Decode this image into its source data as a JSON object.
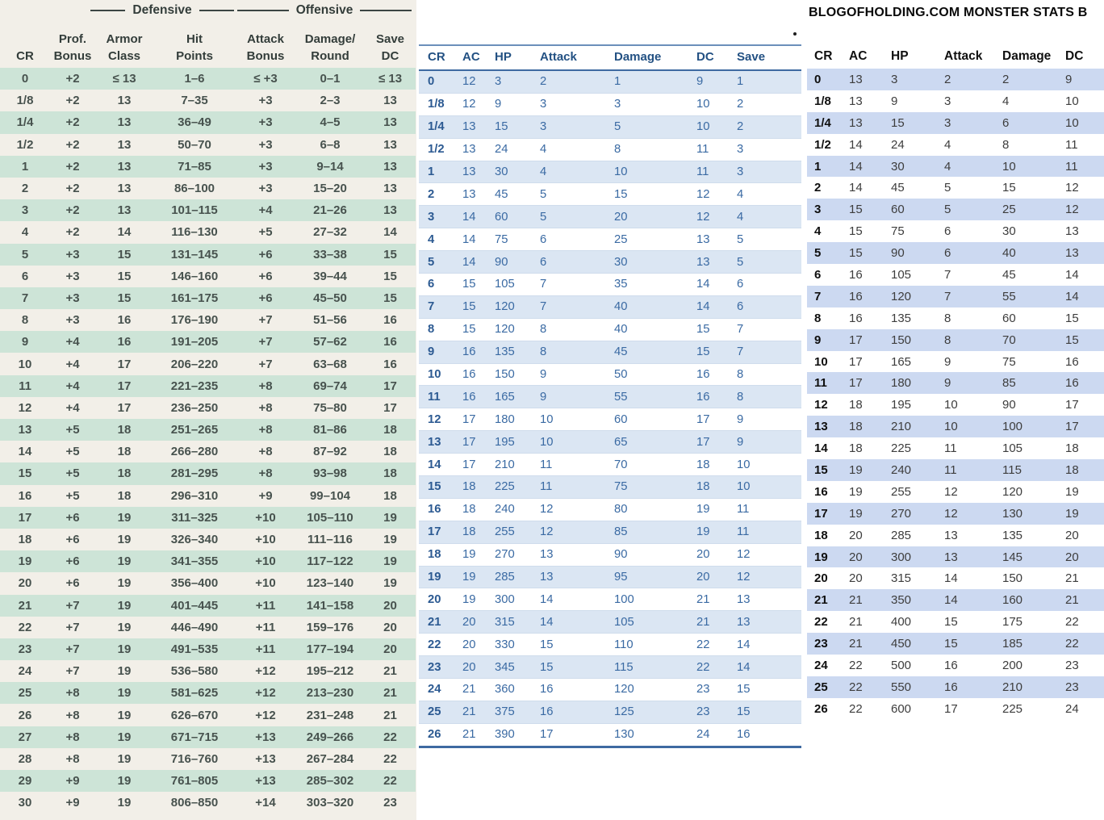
{
  "colors": {
    "dmg_paper": "#f2efe8",
    "dmg_stripe": "#cde4d7",
    "blue_stripe": "#dbe6f3",
    "blue_text": "#3a6aa3",
    "bh_stripe": "#ccd9f1"
  },
  "stray_dot": ".",
  "dmg_table": {
    "group_headers": {
      "defensive": "Defensive",
      "offensive": "Offensive"
    },
    "columns": [
      "CR",
      "Prof.\nBonus",
      "Armor\nClass",
      "Hit\nPoints",
      "Attack\nBonus",
      "Damage/\nRound",
      "Save\nDC"
    ],
    "rows": [
      [
        "0",
        "+2",
        "≤ 13",
        "1–6",
        "≤ +3",
        "0–1",
        "≤ 13"
      ],
      [
        "1/8",
        "+2",
        "13",
        "7–35",
        "+3",
        "2–3",
        "13"
      ],
      [
        "1/4",
        "+2",
        "13",
        "36–49",
        "+3",
        "4–5",
        "13"
      ],
      [
        "1/2",
        "+2",
        "13",
        "50–70",
        "+3",
        "6–8",
        "13"
      ],
      [
        "1",
        "+2",
        "13",
        "71–85",
        "+3",
        "9–14",
        "13"
      ],
      [
        "2",
        "+2",
        "13",
        "86–100",
        "+3",
        "15–20",
        "13"
      ],
      [
        "3",
        "+2",
        "13",
        "101–115",
        "+4",
        "21–26",
        "13"
      ],
      [
        "4",
        "+2",
        "14",
        "116–130",
        "+5",
        "27–32",
        "14"
      ],
      [
        "5",
        "+3",
        "15",
        "131–145",
        "+6",
        "33–38",
        "15"
      ],
      [
        "6",
        "+3",
        "15",
        "146–160",
        "+6",
        "39–44",
        "15"
      ],
      [
        "7",
        "+3",
        "15",
        "161–175",
        "+6",
        "45–50",
        "15"
      ],
      [
        "8",
        "+3",
        "16",
        "176–190",
        "+7",
        "51–56",
        "16"
      ],
      [
        "9",
        "+4",
        "16",
        "191–205",
        "+7",
        "57–62",
        "16"
      ],
      [
        "10",
        "+4",
        "17",
        "206–220",
        "+7",
        "63–68",
        "16"
      ],
      [
        "11",
        "+4",
        "17",
        "221–235",
        "+8",
        "69–74",
        "17"
      ],
      [
        "12",
        "+4",
        "17",
        "236–250",
        "+8",
        "75–80",
        "17"
      ],
      [
        "13",
        "+5",
        "18",
        "251–265",
        "+8",
        "81–86",
        "18"
      ],
      [
        "14",
        "+5",
        "18",
        "266–280",
        "+8",
        "87–92",
        "18"
      ],
      [
        "15",
        "+5",
        "18",
        "281–295",
        "+8",
        "93–98",
        "18"
      ],
      [
        "16",
        "+5",
        "18",
        "296–310",
        "+9",
        "99–104",
        "18"
      ],
      [
        "17",
        "+6",
        "19",
        "311–325",
        "+10",
        "105–110",
        "19"
      ],
      [
        "18",
        "+6",
        "19",
        "326–340",
        "+10",
        "111–116",
        "19"
      ],
      [
        "19",
        "+6",
        "19",
        "341–355",
        "+10",
        "117–122",
        "19"
      ],
      [
        "20",
        "+6",
        "19",
        "356–400",
        "+10",
        "123–140",
        "19"
      ],
      [
        "21",
        "+7",
        "19",
        "401–445",
        "+11",
        "141–158",
        "20"
      ],
      [
        "22",
        "+7",
        "19",
        "446–490",
        "+11",
        "159–176",
        "20"
      ],
      [
        "23",
        "+7",
        "19",
        "491–535",
        "+11",
        "177–194",
        "20"
      ],
      [
        "24",
        "+7",
        "19",
        "536–580",
        "+12",
        "195–212",
        "21"
      ],
      [
        "25",
        "+8",
        "19",
        "581–625",
        "+12",
        "213–230",
        "21"
      ],
      [
        "26",
        "+8",
        "19",
        "626–670",
        "+12",
        "231–248",
        "21"
      ],
      [
        "27",
        "+8",
        "19",
        "671–715",
        "+13",
        "249–266",
        "22"
      ],
      [
        "28",
        "+8",
        "19",
        "716–760",
        "+13",
        "267–284",
        "22"
      ],
      [
        "29",
        "+9",
        "19",
        "761–805",
        "+13",
        "285–302",
        "22"
      ],
      [
        "30",
        "+9",
        "19",
        "806–850",
        "+14",
        "303–320",
        "23"
      ]
    ]
  },
  "blue_table": {
    "columns": [
      "CR",
      "AC",
      "HP",
      "Attack",
      "Damage",
      "DC",
      "Save"
    ],
    "rows": [
      [
        "0",
        "12",
        "3",
        "2",
        "1",
        "9",
        "1"
      ],
      [
        "1/8",
        "12",
        "9",
        "3",
        "3",
        "10",
        "2"
      ],
      [
        "1/4",
        "13",
        "15",
        "3",
        "5",
        "10",
        "2"
      ],
      [
        "1/2",
        "13",
        "24",
        "4",
        "8",
        "11",
        "3"
      ],
      [
        "1",
        "13",
        "30",
        "4",
        "10",
        "11",
        "3"
      ],
      [
        "2",
        "13",
        "45",
        "5",
        "15",
        "12",
        "4"
      ],
      [
        "3",
        "14",
        "60",
        "5",
        "20",
        "12",
        "4"
      ],
      [
        "4",
        "14",
        "75",
        "6",
        "25",
        "13",
        "5"
      ],
      [
        "5",
        "14",
        "90",
        "6",
        "30",
        "13",
        "5"
      ],
      [
        "6",
        "15",
        "105",
        "7",
        "35",
        "14",
        "6"
      ],
      [
        "7",
        "15",
        "120",
        "7",
        "40",
        "14",
        "6"
      ],
      [
        "8",
        "15",
        "120",
        "8",
        "40",
        "15",
        "7"
      ],
      [
        "9",
        "16",
        "135",
        "8",
        "45",
        "15",
        "7"
      ],
      [
        "10",
        "16",
        "150",
        "9",
        "50",
        "16",
        "8"
      ],
      [
        "11",
        "16",
        "165",
        "9",
        "55",
        "16",
        "8"
      ],
      [
        "12",
        "17",
        "180",
        "10",
        "60",
        "17",
        "9"
      ],
      [
        "13",
        "17",
        "195",
        "10",
        "65",
        "17",
        "9"
      ],
      [
        "14",
        "17",
        "210",
        "11",
        "70",
        "18",
        "10"
      ],
      [
        "15",
        "18",
        "225",
        "11",
        "75",
        "18",
        "10"
      ],
      [
        "16",
        "18",
        "240",
        "12",
        "80",
        "19",
        "11"
      ],
      [
        "17",
        "18",
        "255",
        "12",
        "85",
        "19",
        "11"
      ],
      [
        "18",
        "19",
        "270",
        "13",
        "90",
        "20",
        "12"
      ],
      [
        "19",
        "19",
        "285",
        "13",
        "95",
        "20",
        "12"
      ],
      [
        "20",
        "19",
        "300",
        "14",
        "100",
        "21",
        "13"
      ],
      [
        "21",
        "20",
        "315",
        "14",
        "105",
        "21",
        "13"
      ],
      [
        "22",
        "20",
        "330",
        "15",
        "110",
        "22",
        "14"
      ],
      [
        "23",
        "20",
        "345",
        "15",
        "115",
        "22",
        "14"
      ],
      [
        "24",
        "21",
        "360",
        "16",
        "120",
        "23",
        "15"
      ],
      [
        "25",
        "21",
        "375",
        "16",
        "125",
        "23",
        "15"
      ],
      [
        "26",
        "21",
        "390",
        "17",
        "130",
        "24",
        "16"
      ]
    ]
  },
  "bh_table": {
    "title": "BLOGOFHOLDING.COM MONSTER STATS B",
    "columns": [
      "CR",
      "AC",
      "HP",
      "Attack",
      "Damage",
      "DC"
    ],
    "rows": [
      [
        "0",
        "13",
        "3",
        "2",
        "2",
        "9"
      ],
      [
        "1/8",
        "13",
        "9",
        "3",
        "4",
        "10"
      ],
      [
        "1/4",
        "13",
        "15",
        "3",
        "6",
        "10"
      ],
      [
        "1/2",
        "14",
        "24",
        "4",
        "8",
        "11"
      ],
      [
        "1",
        "14",
        "30",
        "4",
        "10",
        "11"
      ],
      [
        "2",
        "14",
        "45",
        "5",
        "15",
        "12"
      ],
      [
        "3",
        "15",
        "60",
        "5",
        "25",
        "12"
      ],
      [
        "4",
        "15",
        "75",
        "6",
        "30",
        "13"
      ],
      [
        "5",
        "15",
        "90",
        "6",
        "40",
        "13"
      ],
      [
        "6",
        "16",
        "105",
        "7",
        "45",
        "14"
      ],
      [
        "7",
        "16",
        "120",
        "7",
        "55",
        "14"
      ],
      [
        "8",
        "16",
        "135",
        "8",
        "60",
        "15"
      ],
      [
        "9",
        "17",
        "150",
        "8",
        "70",
        "15"
      ],
      [
        "10",
        "17",
        "165",
        "9",
        "75",
        "16"
      ],
      [
        "11",
        "17",
        "180",
        "9",
        "85",
        "16"
      ],
      [
        "12",
        "18",
        "195",
        "10",
        "90",
        "17"
      ],
      [
        "13",
        "18",
        "210",
        "10",
        "100",
        "17"
      ],
      [
        "14",
        "18",
        "225",
        "11",
        "105",
        "18"
      ],
      [
        "15",
        "19",
        "240",
        "11",
        "115",
        "18"
      ],
      [
        "16",
        "19",
        "255",
        "12",
        "120",
        "19"
      ],
      [
        "17",
        "19",
        "270",
        "12",
        "130",
        "19"
      ],
      [
        "18",
        "20",
        "285",
        "13",
        "135",
        "20"
      ],
      [
        "19",
        "20",
        "300",
        "13",
        "145",
        "20"
      ],
      [
        "20",
        "20",
        "315",
        "14",
        "150",
        "21"
      ],
      [
        "21",
        "21",
        "350",
        "14",
        "160",
        "21"
      ],
      [
        "22",
        "21",
        "400",
        "15",
        "175",
        "22"
      ],
      [
        "23",
        "21",
        "450",
        "15",
        "185",
        "22"
      ],
      [
        "24",
        "22",
        "500",
        "16",
        "200",
        "23"
      ],
      [
        "25",
        "22",
        "550",
        "16",
        "210",
        "23"
      ],
      [
        "26",
        "22",
        "600",
        "17",
        "225",
        "24"
      ]
    ]
  }
}
